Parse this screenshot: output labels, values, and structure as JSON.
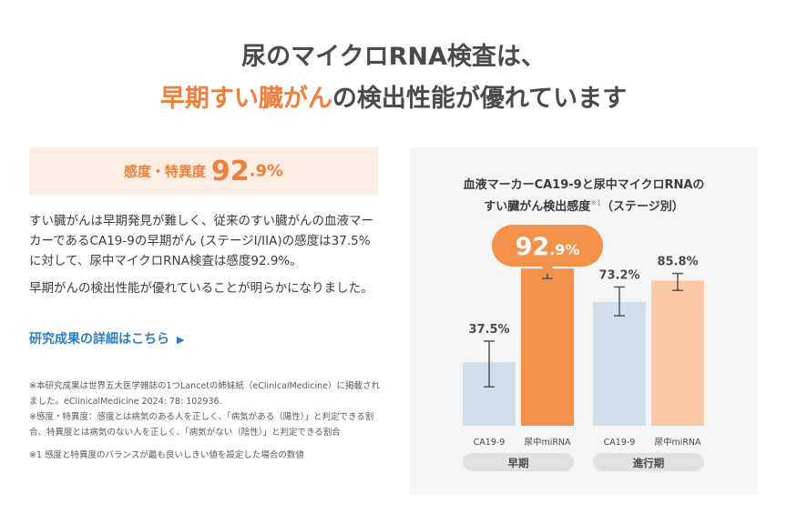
{
  "headline": {
    "line1": "尿のマイクロRNA検査は、",
    "line2_highlight": "早期すい臓がん",
    "line2_rest": "の検出性能が優れています"
  },
  "sensitivity_box": {
    "label": "感度・特異度",
    "value_big": "92",
    "value_small": ".9%"
  },
  "body": {
    "paragraph1": "すい臓がんは早期発見が難しく、従来のすい臓がんの血液マーカーであるCA19-9の早期がん (ステージI/IIA)の感度は37.5%に対して、尿中マイクロRNA検査は感度92.9%。",
    "paragraph2": "早期がんの検出性能が優れていることが明らかになりました。",
    "link_label": "研究成果の詳細はこちら",
    "link_icon": "triangle-right-icon"
  },
  "notes": {
    "note1": "※本研究成果は世界五大医学雑誌の1つLancetの姉妹紙（eClinicalMedicine）に掲載されました。eClinicalMedicine 2024: 78: 102936.",
    "note2": "※感度・特異度：感度とは病気のある人を正しく、「病気がある（陽性）」と判定できる割合、特異度とは病気のない人を正しく、「病気がない（陰性）」と判定できる割合",
    "note3": "※1 感度と特異度のバランスが最も良いしきい値を設定した場合の数値"
  },
  "chart_data": {
    "type": "bar",
    "title_line1": "血液マーカーCA19-9と尿中マイクロRNAの",
    "title_line2": "すい臓がん検出感度",
    "title_sup": "※1",
    "title_suffix": "（ステージ別）",
    "groups": [
      "早期",
      "進行期"
    ],
    "bars": [
      {
        "group": "早期",
        "label": "CA19-9",
        "value": 37.5,
        "err_low": 23,
        "err_high": 50,
        "value_label": "37.5%",
        "color": "#cfe0ec"
      },
      {
        "group": "早期",
        "label": "尿中miRNA",
        "value": 92.9,
        "err_low": 87,
        "err_high": 97,
        "value_label": "",
        "color": "#f4914a"
      },
      {
        "group": "進行期",
        "label": "CA19-9",
        "value": 73.2,
        "err_low": 65,
        "err_high": 82,
        "value_label": "73.2%",
        "color": "#cfe0ec"
      },
      {
        "group": "進行期",
        "label": "尿中miRNA",
        "value": 85.8,
        "err_low": 80,
        "err_high": 90,
        "value_label": "85.8%",
        "color": "#fcc9a6"
      }
    ],
    "callout": {
      "big": "92",
      "small": ".9%",
      "color": "#f4914a"
    },
    "ylim": [
      0,
      100
    ],
    "xlabel": "",
    "ylabel": ""
  }
}
